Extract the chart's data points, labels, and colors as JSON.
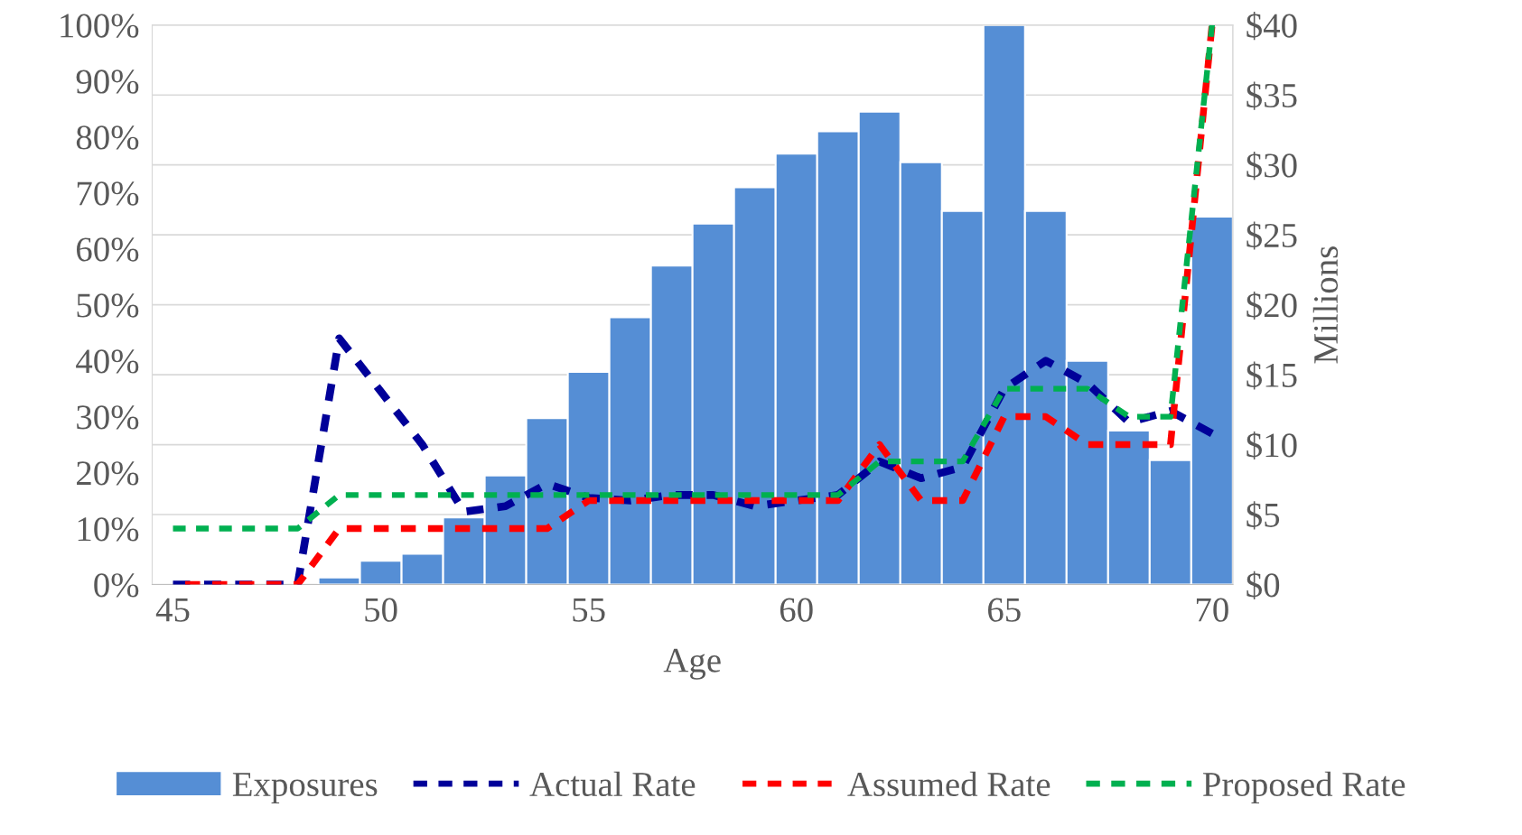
{
  "chart_data": {
    "type": "bar",
    "xlabel": "Age",
    "y2label": "Millions",
    "x": [
      45,
      46,
      47,
      48,
      49,
      50,
      51,
      52,
      53,
      54,
      55,
      56,
      57,
      58,
      59,
      60,
      61,
      62,
      63,
      64,
      65,
      66,
      67,
      68,
      69,
      70
    ],
    "series": [
      {
        "name": "Exposures",
        "axis": "y2",
        "color": "#558ed5",
        "values": [
          null,
          null,
          null,
          null,
          0.5,
          1.7,
          2.2,
          4.8,
          7.8,
          11.9,
          15.2,
          19.1,
          22.8,
          25.8,
          28.4,
          30.8,
          32.4,
          33.8,
          30.2,
          26.7,
          40,
          26.7,
          16.0,
          11.0,
          8.9,
          26.3
        ]
      },
      {
        "name": "Actual Rate",
        "type": "line",
        "color": "#000099",
        "line_style": "dashed",
        "values": [
          0,
          0,
          0,
          0,
          44,
          34.5,
          25,
          13,
          14,
          18,
          15.5,
          15,
          16,
          16,
          14,
          15,
          16,
          22,
          19,
          21,
          35,
          40,
          36,
          29,
          31,
          27
        ]
      },
      {
        "name": "Assumed Rate",
        "type": "line",
        "color": "#ff0000",
        "line_style": "dashed",
        "values": [
          0,
          0,
          0,
          0,
          10,
          10,
          10,
          10,
          10,
          10,
          15,
          15,
          15,
          15,
          15,
          15,
          15,
          25,
          15,
          15,
          30,
          30,
          25,
          25,
          25,
          100
        ]
      },
      {
        "name": "Proposed Rate",
        "type": "line",
        "color": "#00b050",
        "line_style": "dashed",
        "values": [
          10,
          10,
          10,
          10,
          16,
          16,
          16,
          16,
          16,
          16,
          16,
          16,
          16,
          16,
          16,
          16,
          16,
          22,
          22,
          22,
          35,
          35,
          35,
          30,
          30,
          100
        ]
      }
    ],
    "xlim": [
      44.5,
      70.5
    ],
    "xticks": [
      45,
      50,
      55,
      60,
      65,
      70
    ],
    "ylim": [
      0,
      100
    ],
    "yticks": [
      {
        "value": 0,
        "label": "0%"
      },
      {
        "value": 10,
        "label": "10%"
      },
      {
        "value": 20,
        "label": "20%"
      },
      {
        "value": 30,
        "label": "30%"
      },
      {
        "value": 40,
        "label": "40%"
      },
      {
        "value": 50,
        "label": "50%"
      },
      {
        "value": 60,
        "label": "60%"
      },
      {
        "value": 70,
        "label": "70%"
      },
      {
        "value": 80,
        "label": "80%"
      },
      {
        "value": 90,
        "label": "90%"
      },
      {
        "value": 100,
        "label": "100%"
      }
    ],
    "y2lim": [
      0,
      40
    ],
    "y2ticks": [
      {
        "value": 0,
        "label": "$0"
      },
      {
        "value": 5,
        "label": "$5"
      },
      {
        "value": 10,
        "label": "$10"
      },
      {
        "value": 15,
        "label": "$15"
      },
      {
        "value": 20,
        "label": "$20"
      },
      {
        "value": 25,
        "label": "$25"
      },
      {
        "value": 30,
        "label": "$30"
      },
      {
        "value": 35,
        "label": "$35"
      },
      {
        "value": 40,
        "label": "$40"
      }
    ],
    "grid": "y",
    "legend": "bottom"
  }
}
